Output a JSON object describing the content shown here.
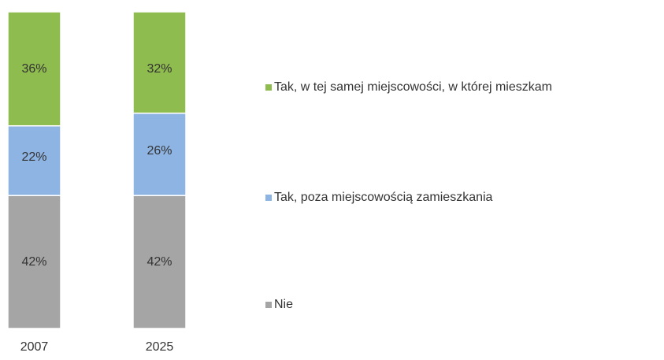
{
  "chart_data": {
    "type": "stacked_bar",
    "categories": [
      "2007",
      "2025"
    ],
    "series": [
      {
        "name": "Nie",
        "color": "#a5a5a5",
        "values": [
          42,
          42
        ],
        "value_labels": [
          "42%",
          "42%"
        ]
      },
      {
        "name": "Tak, poza miejscowością zamieszkania",
        "color": "#8eb4e3",
        "values": [
          22,
          26
        ],
        "value_labels": [
          "22%",
          "26%"
        ]
      },
      {
        "name": "Tak, w tej samej miejscowości, w której mieszkam",
        "color": "#8fbc4f",
        "values": [
          36,
          32
        ],
        "value_labels": [
          "36%",
          "32%"
        ]
      }
    ],
    "legend": "right"
  }
}
